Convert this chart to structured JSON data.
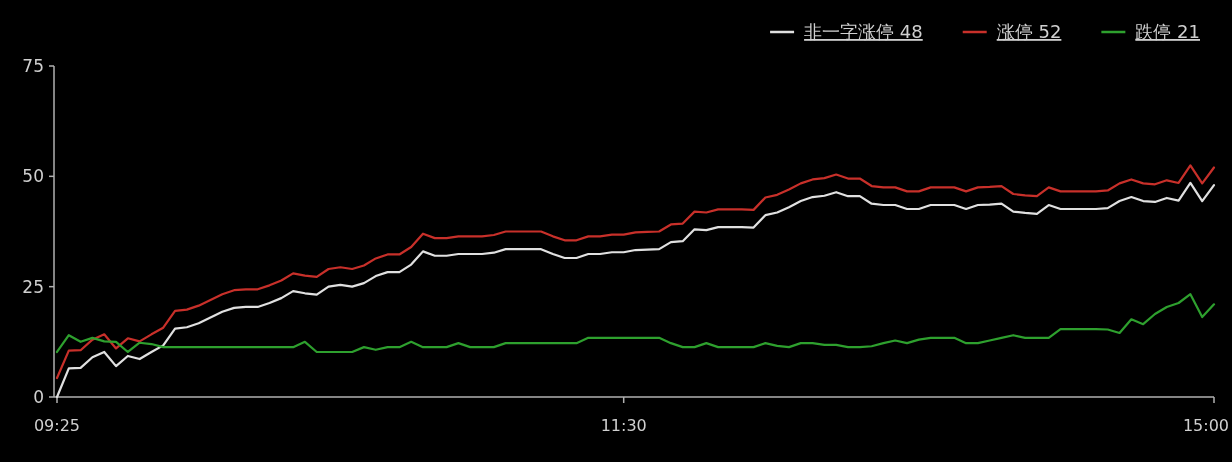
{
  "chart_data": {
    "type": "line",
    "ylim": [
      0,
      75
    ],
    "yticks": [
      0,
      25,
      50,
      75
    ],
    "legend": "top right",
    "categories": [
      "09:25",
      null,
      null,
      null,
      null,
      null,
      null,
      null,
      null,
      null,
      null,
      null,
      null,
      null,
      null,
      null,
      null,
      null,
      null,
      null,
      null,
      null,
      null,
      null,
      null,
      null,
      null,
      null,
      null,
      null,
      null,
      null,
      null,
      null,
      null,
      null,
      null,
      null,
      null,
      null,
      null,
      null,
      null,
      null,
      null,
      null,
      null,
      null,
      "11:30",
      null,
      null,
      null,
      null,
      null,
      null,
      null,
      null,
      null,
      null,
      null,
      null,
      null,
      null,
      null,
      null,
      null,
      null,
      null,
      null,
      null,
      null,
      null,
      null,
      null,
      null,
      null,
      null,
      null,
      null,
      null,
      null,
      null,
      null,
      null,
      null,
      null,
      null,
      null,
      null,
      null,
      null,
      null,
      null,
      null,
      null,
      null,
      null,
      null,
      "15:00"
    ],
    "series": [
      {
        "name": "非一字涨停 48",
        "color": "#e0e0e0",
        "values": [
          0,
          6.5,
          6.6,
          9,
          10.2,
          7,
          9.3,
          8.6,
          10.2,
          11.7,
          15.5,
          15.8,
          16.7,
          18,
          19.3,
          20.2,
          20.4,
          20.4,
          21.3,
          22.4,
          24,
          23.5,
          23.2,
          25,
          25.4,
          25,
          25.8,
          27.4,
          28.3,
          28.3,
          30,
          33,
          32,
          32,
          32.4,
          32.4,
          32.4,
          32.7,
          33.5,
          33.5,
          33.5,
          33.5,
          32.4,
          31.5,
          31.5,
          32.4,
          32.4,
          32.8,
          32.8,
          33.3,
          33.4,
          33.5,
          35.1,
          35.3,
          38,
          37.8,
          38.5,
          38.5,
          38.5,
          38.4,
          41.2,
          41.8,
          43,
          44.4,
          45.3,
          45.6,
          46.4,
          45.5,
          45.5,
          43.8,
          43.5,
          43.5,
          42.6,
          42.6,
          43.5,
          43.5,
          43.5,
          42.6,
          43.5,
          43.6,
          43.8,
          42,
          41.7,
          41.5,
          43.5,
          42.6,
          42.6,
          42.6,
          42.6,
          42.8,
          44.4,
          45.3,
          44.4,
          44.2,
          45.1,
          44.5,
          48.5,
          44.4,
          48
        ]
      },
      {
        "name": "涨停 52",
        "color": "#c8302a",
        "values": [
          4.3,
          10.5,
          10.6,
          13,
          14.2,
          11,
          13.3,
          12.6,
          14.2,
          15.7,
          19.5,
          19.8,
          20.7,
          22,
          23.3,
          24.2,
          24.4,
          24.4,
          25.3,
          26.4,
          28,
          27.5,
          27.2,
          29,
          29.4,
          29,
          29.8,
          31.4,
          32.3,
          32.3,
          34,
          37,
          36,
          36,
          36.4,
          36.4,
          36.4,
          36.7,
          37.5,
          37.5,
          37.5,
          37.5,
          36.4,
          35.5,
          35.5,
          36.4,
          36.4,
          36.8,
          36.8,
          37.3,
          37.4,
          37.5,
          39.1,
          39.3,
          42,
          41.8,
          42.5,
          42.5,
          42.5,
          42.4,
          45.2,
          45.8,
          47,
          48.4,
          49.3,
          49.6,
          50.4,
          49.5,
          49.5,
          47.8,
          47.5,
          47.5,
          46.6,
          46.6,
          47.5,
          47.5,
          47.5,
          46.6,
          47.5,
          47.6,
          47.8,
          46,
          45.7,
          45.5,
          47.5,
          46.6,
          46.6,
          46.6,
          46.6,
          46.8,
          48.4,
          49.3,
          48.4,
          48.2,
          49.1,
          48.5,
          52.5,
          48.4,
          52
        ]
      },
      {
        "name": "跌停 21",
        "color": "#2ea02e",
        "values": [
          10.2,
          14,
          12.5,
          13.4,
          12.6,
          12.5,
          10.2,
          12.3,
          12,
          11.3,
          11.3,
          11.3,
          11.3,
          11.3,
          11.3,
          11.3,
          11.3,
          11.3,
          11.3,
          11.3,
          11.3,
          12.5,
          10.2,
          10.2,
          10.2,
          10.2,
          11.3,
          10.7,
          11.3,
          11.3,
          12.5,
          11.3,
          11.3,
          11.3,
          12.2,
          11.3,
          11.3,
          11.3,
          12.2,
          12.2,
          12.2,
          12.2,
          12.2,
          12.2,
          12.2,
          13.4,
          13.4,
          13.4,
          13.4,
          13.4,
          13.4,
          13.4,
          12.2,
          11.3,
          11.3,
          12.2,
          11.3,
          11.3,
          11.3,
          11.3,
          12.2,
          11.6,
          11.3,
          12.2,
          12.2,
          11.8,
          11.8,
          11.3,
          11.3,
          11.5,
          12.2,
          12.8,
          12.2,
          13,
          13.4,
          13.4,
          13.4,
          12.2,
          12.2,
          12.8,
          13.4,
          14,
          13.4,
          13.4,
          13.4,
          15.4,
          15.4,
          15.4,
          15.4,
          15.3,
          14.5,
          17.6,
          16.5,
          18.8,
          20.4,
          21.3,
          23.3,
          18.1,
          21
        ]
      }
    ]
  }
}
